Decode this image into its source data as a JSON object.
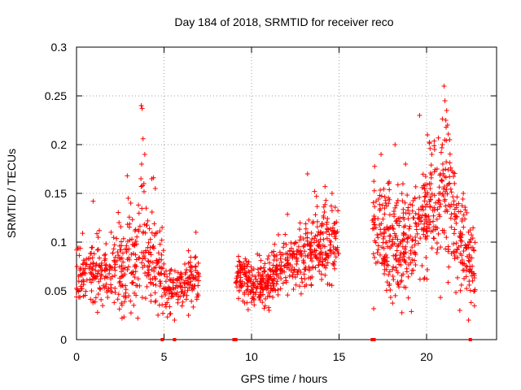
{
  "chart_data": {
    "type": "scatter",
    "title": "Day 184 of 2018, SRMTID for receiver reco",
    "xlabel": "GPS time / hours",
    "ylabel": "SRMTID / TECUs",
    "xlim": [
      0,
      24
    ],
    "ylim": [
      0,
      0.3
    ],
    "grid": true,
    "x_ticks": [
      0,
      5,
      10,
      15,
      20
    ],
    "y_ticks": [
      0,
      0.05,
      0.1,
      0.15,
      0.2,
      0.25,
      0.3
    ],
    "y_tick_labels": [
      "0",
      "0.05",
      "0.1",
      "0.15",
      "0.2",
      "0.25",
      "0.3"
    ],
    "series_color": "#ff0000",
    "marker": "+",
    "segments": [
      {
        "x0": 0.0,
        "x1": 7.0,
        "samples": 520,
        "seed": 7
      },
      {
        "x0": 9.1,
        "x1": 15.0,
        "samples": 520,
        "seed": 19
      },
      {
        "x0": 16.9,
        "x1": 22.8,
        "samples": 560,
        "seed": 31
      }
    ],
    "envelope": [
      [
        0.0,
        0.065,
        0.015
      ],
      [
        1.0,
        0.07,
        0.015
      ],
      [
        2.0,
        0.07,
        0.017
      ],
      [
        3.0,
        0.075,
        0.022
      ],
      [
        3.6,
        0.095,
        0.035
      ],
      [
        4.5,
        0.075,
        0.025
      ],
      [
        5.2,
        0.055,
        0.012
      ],
      [
        6.0,
        0.055,
        0.012
      ],
      [
        6.8,
        0.065,
        0.012
      ],
      [
        9.1,
        0.065,
        0.013
      ],
      [
        10.0,
        0.06,
        0.012
      ],
      [
        11.0,
        0.06,
        0.013
      ],
      [
        12.0,
        0.08,
        0.015
      ],
      [
        13.0,
        0.085,
        0.018
      ],
      [
        14.0,
        0.1,
        0.022
      ],
      [
        15.0,
        0.1,
        0.02
      ],
      [
        16.9,
        0.12,
        0.025
      ],
      [
        18.0,
        0.1,
        0.028
      ],
      [
        19.0,
        0.1,
        0.028
      ],
      [
        20.0,
        0.13,
        0.03
      ],
      [
        21.0,
        0.15,
        0.035
      ],
      [
        22.0,
        0.1,
        0.028
      ],
      [
        22.8,
        0.07,
        0.02
      ]
    ],
    "outliers": [
      [
        3.7,
        0.24
      ],
      [
        3.75,
        0.237
      ],
      [
        3.8,
        0.206
      ],
      [
        3.9,
        0.19
      ],
      [
        3.72,
        0.18
      ],
      [
        2.9,
        0.168
      ],
      [
        4.4,
        0.166
      ],
      [
        4.3,
        0.165
      ],
      [
        3.68,
        0.165
      ],
      [
        3.85,
        0.16
      ],
      [
        4.5,
        0.155
      ],
      [
        0.95,
        0.142
      ],
      [
        2.95,
        0.145
      ],
      [
        3.1,
        0.14
      ],
      [
        13.2,
        0.17
      ],
      [
        13.6,
        0.152
      ],
      [
        14.2,
        0.157
      ],
      [
        14.6,
        0.15
      ],
      [
        19.6,
        0.23
      ],
      [
        20.05,
        0.21
      ],
      [
        20.3,
        0.19
      ],
      [
        21.0,
        0.26
      ],
      [
        21.05,
        0.245
      ],
      [
        21.15,
        0.235
      ],
      [
        21.1,
        0.225
      ],
      [
        21.2,
        0.22
      ],
      [
        20.9,
        0.2
      ],
      [
        18.2,
        0.2
      ],
      [
        18.8,
        0.18
      ],
      [
        17.4,
        0.19
      ],
      [
        20.6,
        0.175
      ],
      [
        22.1,
        0.15
      ],
      [
        22.4,
        0.02
      ],
      [
        21.9,
        0.03
      ],
      [
        3.5,
        0.022
      ],
      [
        2.6,
        0.022
      ],
      [
        1.2,
        0.028
      ],
      [
        6.4,
        0.025
      ],
      [
        5.6,
        0.02
      ],
      [
        11.0,
        0.03
      ]
    ],
    "zero_markers": [
      4.9,
      5.6,
      9.0,
      9.1,
      16.9,
      17.0,
      22.5
    ]
  }
}
